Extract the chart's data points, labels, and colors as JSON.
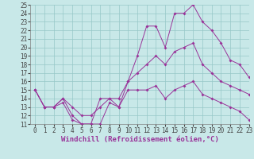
{
  "xlabel": "Windchill (Refroidissement éolien,°C)",
  "bg_color": "#c8e8e8",
  "grid_color": "#96c8c8",
  "line_color": "#993399",
  "hours": [
    0,
    1,
    2,
    3,
    4,
    5,
    6,
    7,
    8,
    9,
    10,
    11,
    12,
    13,
    14,
    15,
    16,
    17,
    18,
    19,
    20,
    21,
    22,
    23
  ],
  "top_vals": [
    15,
    13,
    13,
    14,
    12,
    11,
    11,
    14,
    14,
    13,
    16,
    19,
    22.5,
    22.5,
    20,
    24,
    24,
    25,
    23,
    22,
    20.5,
    18.5,
    18,
    16.5
  ],
  "mid_vals": [
    15,
    13,
    13,
    14,
    13,
    12,
    12,
    13,
    14,
    14,
    16,
    17,
    18,
    19,
    18,
    19.5,
    20,
    20.5,
    18,
    17,
    16,
    15.5,
    15,
    14.5
  ],
  "bot_vals": [
    15,
    13,
    13,
    13.5,
    11.5,
    11,
    11,
    11,
    13.5,
    13,
    15,
    15,
    15,
    15.5,
    14,
    15,
    15.5,
    16,
    14.5,
    14,
    13.5,
    13,
    12.5,
    11.5
  ],
  "ylim": [
    11,
    25
  ],
  "xlim": [
    -0.5,
    23
  ],
  "yticks": [
    11,
    12,
    13,
    14,
    15,
    16,
    17,
    18,
    19,
    20,
    21,
    22,
    23,
    24,
    25
  ],
  "xticks": [
    0,
    1,
    2,
    3,
    4,
    5,
    6,
    7,
    8,
    9,
    10,
    11,
    12,
    13,
    14,
    15,
    16,
    17,
    18,
    19,
    20,
    21,
    22,
    23
  ],
  "tick_fontsize": 5.5,
  "xlabel_fontsize": 6.5
}
